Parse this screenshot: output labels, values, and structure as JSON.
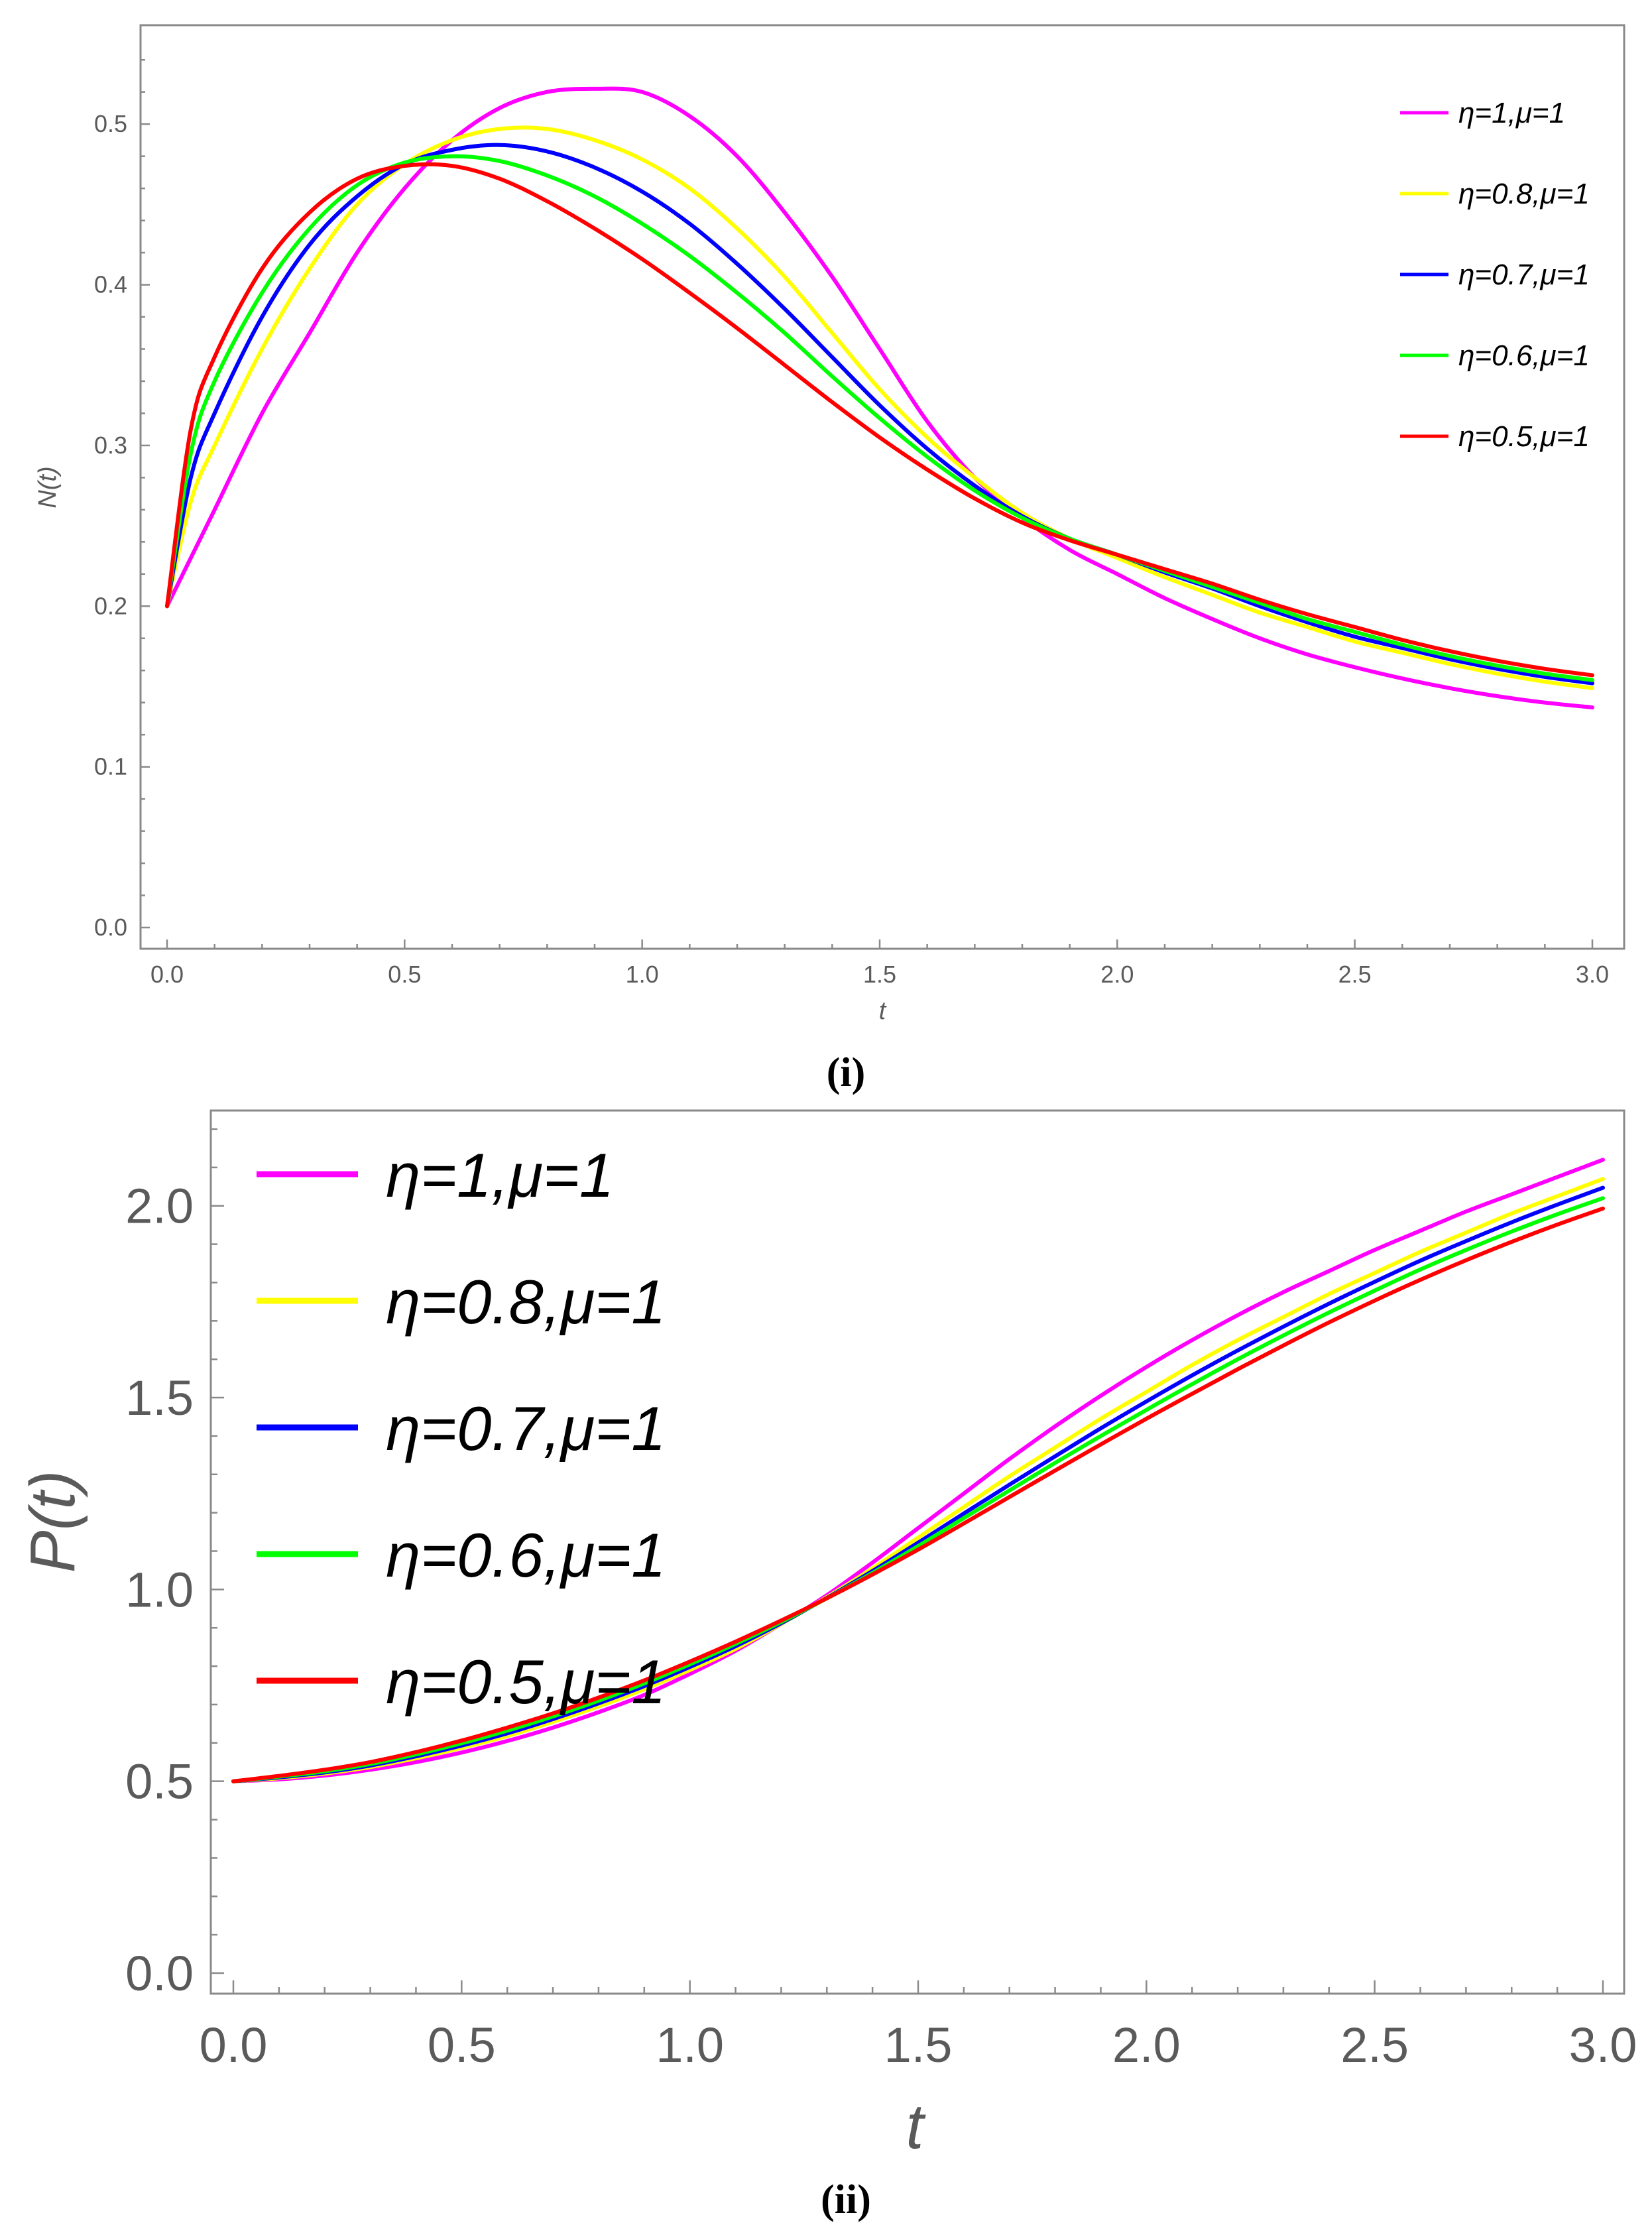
{
  "chart_data": [
    {
      "type": "line",
      "caption": "(i)",
      "xlabel": "t",
      "ylabel": "N(t)",
      "xlim": [
        0,
        3
      ],
      "ylim": [
        0,
        0.55
      ],
      "xticks": [
        "0.0",
        "0.5",
        "1.0",
        "1.5",
        "2.0",
        "2.5",
        "3.0"
      ],
      "yticks": [
        "0.0",
        "0.1",
        "0.2",
        "0.3",
        "0.4",
        "0.5"
      ],
      "legend_position": "top-right",
      "x": [
        0,
        0.05,
        0.1,
        0.2,
        0.3,
        0.4,
        0.5,
        0.6,
        0.7,
        0.8,
        0.9,
        1.0,
        1.1,
        1.2,
        1.3,
        1.4,
        1.5,
        1.6,
        1.7,
        1.8,
        1.9,
        2.0,
        2.1,
        2.2,
        2.3,
        2.4,
        2.5,
        2.6,
        2.7,
        2.8,
        2.9,
        3.0
      ],
      "series": [
        {
          "name": "η=1,μ=1",
          "color": "#ff00ff",
          "values": [
            0.2,
            0.23,
            0.26,
            0.32,
            0.37,
            0.42,
            0.46,
            0.49,
            0.51,
            0.52,
            0.522,
            0.52,
            0.505,
            0.48,
            0.445,
            0.405,
            0.36,
            0.315,
            0.28,
            0.255,
            0.235,
            0.22,
            0.205,
            0.192,
            0.18,
            0.17,
            0.162,
            0.155,
            0.149,
            0.144,
            0.14,
            0.137
          ]
        },
        {
          "name": "η=0.8,μ=1",
          "color": "#ffff00",
          "values": [
            0.2,
            0.265,
            0.3,
            0.36,
            0.41,
            0.45,
            0.475,
            0.49,
            0.497,
            0.497,
            0.49,
            0.478,
            0.46,
            0.435,
            0.405,
            0.37,
            0.335,
            0.305,
            0.28,
            0.258,
            0.242,
            0.23,
            0.218,
            0.207,
            0.196,
            0.187,
            0.178,
            0.171,
            0.164,
            0.158,
            0.153,
            0.149
          ]
        },
        {
          "name": "η=0.7,μ=1",
          "color": "#0000ff",
          "values": [
            0.2,
            0.28,
            0.32,
            0.38,
            0.425,
            0.455,
            0.475,
            0.484,
            0.487,
            0.483,
            0.473,
            0.458,
            0.438,
            0.413,
            0.385,
            0.355,
            0.325,
            0.298,
            0.275,
            0.256,
            0.242,
            0.232,
            0.221,
            0.211,
            0.2,
            0.19,
            0.181,
            0.174,
            0.167,
            0.161,
            0.156,
            0.152
          ]
        },
        {
          "name": "η=0.6,μ=1",
          "color": "#00ff00",
          "values": [
            0.2,
            0.295,
            0.34,
            0.395,
            0.435,
            0.462,
            0.476,
            0.48,
            0.477,
            0.468,
            0.455,
            0.438,
            0.418,
            0.395,
            0.37,
            0.343,
            0.317,
            0.293,
            0.272,
            0.255,
            0.242,
            0.232,
            0.222,
            0.212,
            0.202,
            0.192,
            0.184,
            0.176,
            0.169,
            0.163,
            0.158,
            0.154
          ]
        },
        {
          "name": "η=0.5,μ=1",
          "color": "#ff0000",
          "values": [
            0.2,
            0.31,
            0.355,
            0.41,
            0.445,
            0.466,
            0.474,
            0.474,
            0.466,
            0.452,
            0.435,
            0.416,
            0.395,
            0.373,
            0.35,
            0.327,
            0.305,
            0.285,
            0.267,
            0.252,
            0.241,
            0.232,
            0.223,
            0.214,
            0.204,
            0.195,
            0.187,
            0.179,
            0.172,
            0.166,
            0.161,
            0.157
          ]
        }
      ]
    },
    {
      "type": "line",
      "caption": "(ii)",
      "xlabel": "t",
      "ylabel": "P(t)",
      "xlim": [
        0,
        3
      ],
      "ylim": [
        0,
        2.2
      ],
      "xticks": [
        "0.0",
        "0.5",
        "1.0",
        "1.5",
        "2.0",
        "2.5",
        "3.0"
      ],
      "yticks": [
        "0.0",
        "0.5",
        "1.0",
        "1.5",
        "2.0"
      ],
      "legend_position": "top-left",
      "x": [
        0,
        0.1,
        0.2,
        0.3,
        0.4,
        0.5,
        0.6,
        0.7,
        0.8,
        0.9,
        1.0,
        1.1,
        1.2,
        1.3,
        1.4,
        1.5,
        1.6,
        1.7,
        1.8,
        1.9,
        2.0,
        2.1,
        2.2,
        2.3,
        2.4,
        2.5,
        2.6,
        2.7,
        2.8,
        2.9,
        3.0
      ],
      "series": [
        {
          "name": "η=1,μ=1",
          "color": "#ff00ff",
          "values": [
            0.5,
            0.505,
            0.515,
            0.53,
            0.55,
            0.575,
            0.605,
            0.64,
            0.68,
            0.725,
            0.78,
            0.84,
            0.91,
            0.985,
            1.07,
            1.16,
            1.25,
            1.34,
            1.425,
            1.505,
            1.58,
            1.65,
            1.715,
            1.775,
            1.83,
            1.885,
            1.935,
            1.985,
            2.03,
            2.075,
            2.12
          ]
        },
        {
          "name": "η=0.8,μ=1",
          "color": "#ffff00",
          "values": [
            0.5,
            0.508,
            0.52,
            0.537,
            0.56,
            0.587,
            0.618,
            0.655,
            0.695,
            0.74,
            0.79,
            0.845,
            0.91,
            0.98,
            1.055,
            1.135,
            1.215,
            1.295,
            1.37,
            1.445,
            1.515,
            1.585,
            1.65,
            1.71,
            1.77,
            1.825,
            1.88,
            1.93,
            1.98,
            2.025,
            2.07
          ]
        },
        {
          "name": "η=0.7,μ=1",
          "color": "#0000ff",
          "values": [
            0.5,
            0.51,
            0.523,
            0.541,
            0.565,
            0.593,
            0.625,
            0.662,
            0.703,
            0.748,
            0.798,
            0.852,
            0.912,
            0.978,
            1.048,
            1.122,
            1.198,
            1.273,
            1.347,
            1.42,
            1.49,
            1.558,
            1.623,
            1.685,
            1.745,
            1.802,
            1.857,
            1.908,
            1.957,
            2.003,
            2.047
          ]
        },
        {
          "name": "η=0.6,μ=1",
          "color": "#00ff00",
          "values": [
            0.5,
            0.512,
            0.526,
            0.545,
            0.57,
            0.599,
            0.632,
            0.669,
            0.71,
            0.755,
            0.805,
            0.858,
            0.915,
            0.977,
            1.043,
            1.113,
            1.186,
            1.258,
            1.33,
            1.4,
            1.468,
            1.535,
            1.6,
            1.662,
            1.722,
            1.779,
            1.834,
            1.885,
            1.933,
            1.978,
            2.02
          ]
        },
        {
          "name": "η=0.5,μ=1",
          "color": "#ff0000",
          "values": [
            0.5,
            0.514,
            0.53,
            0.55,
            0.576,
            0.606,
            0.64,
            0.677,
            0.718,
            0.763,
            0.812,
            0.864,
            0.919,
            0.977,
            1.039,
            1.104,
            1.172,
            1.241,
            1.31,
            1.378,
            1.445,
            1.51,
            1.574,
            1.636,
            1.696,
            1.753,
            1.807,
            1.858,
            1.906,
            1.951,
            1.993
          ]
        }
      ]
    }
  ]
}
